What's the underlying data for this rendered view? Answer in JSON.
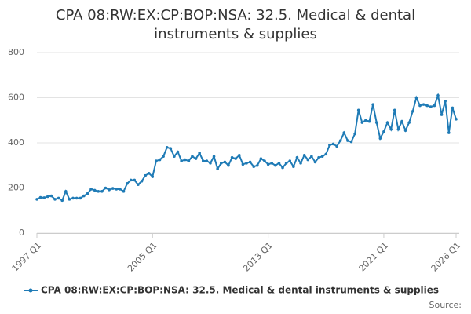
{
  "chart_data": {
    "type": "line",
    "title": "CPA 08:RW:EX:CP:BOP:NSA: 32.5. Medical & dental instruments & supplies",
    "source": "Source:",
    "categories": [
      "1997 Q1",
      null,
      null,
      null,
      null,
      null,
      null,
      null,
      null,
      null,
      null,
      null,
      null,
      null,
      null,
      null,
      null,
      null,
      null,
      null,
      null,
      null,
      null,
      null,
      null,
      null,
      null,
      null,
      null,
      null,
      null,
      null,
      "2005 Q1",
      null,
      null,
      null,
      null,
      null,
      null,
      null,
      null,
      null,
      null,
      null,
      null,
      null,
      null,
      null,
      null,
      null,
      null,
      null,
      null,
      null,
      null,
      null,
      null,
      null,
      null,
      null,
      null,
      null,
      null,
      null,
      "2013 Q1",
      null,
      null,
      null,
      null,
      null,
      null,
      null,
      null,
      null,
      null,
      null,
      null,
      null,
      null,
      null,
      null,
      null,
      null,
      null,
      null,
      null,
      null,
      null,
      null,
      null,
      null,
      null,
      null,
      null,
      null,
      null,
      "2021 Q1",
      null,
      null,
      null,
      null,
      null,
      null,
      null,
      null,
      null,
      null,
      null,
      null,
      null,
      null,
      null,
      null,
      null,
      null,
      null,
      "2026 Q1"
    ],
    "series": [
      {
        "name": "CPA 08:RW:EX:CP:BOP:NSA: 32.5. Medical & dental instruments & supplies",
        "color": "#1f7bb6",
        "values": [
          150,
          158,
          157,
          162,
          165,
          150,
          155,
          145,
          185,
          150,
          155,
          155,
          155,
          165,
          175,
          195,
          190,
          185,
          185,
          200,
          192,
          198,
          195,
          195,
          185,
          220,
          235,
          235,
          215,
          230,
          255,
          265,
          250,
          320,
          325,
          340,
          380,
          375,
          340,
          360,
          320,
          325,
          320,
          340,
          330,
          355,
          320,
          320,
          310,
          340,
          285,
          310,
          315,
          300,
          335,
          330,
          345,
          305,
          310,
          315,
          295,
          300,
          330,
          320,
          305,
          310,
          300,
          310,
          290,
          310,
          320,
          295,
          335,
          310,
          345,
          325,
          340,
          315,
          335,
          340,
          350,
          390,
          395,
          385,
          410,
          445,
          410,
          405,
          440,
          545,
          490,
          500,
          495,
          570,
          490,
          420,
          450,
          490,
          460,
          545,
          460,
          495,
          455,
          490,
          540,
          600,
          565,
          570,
          565,
          560,
          565,
          610,
          525,
          585,
          445,
          555,
          505
        ]
      }
    ],
    "ylim": [
      0,
      800
    ],
    "yticks": [
      0,
      200,
      400,
      600,
      800
    ],
    "grid": true
  }
}
